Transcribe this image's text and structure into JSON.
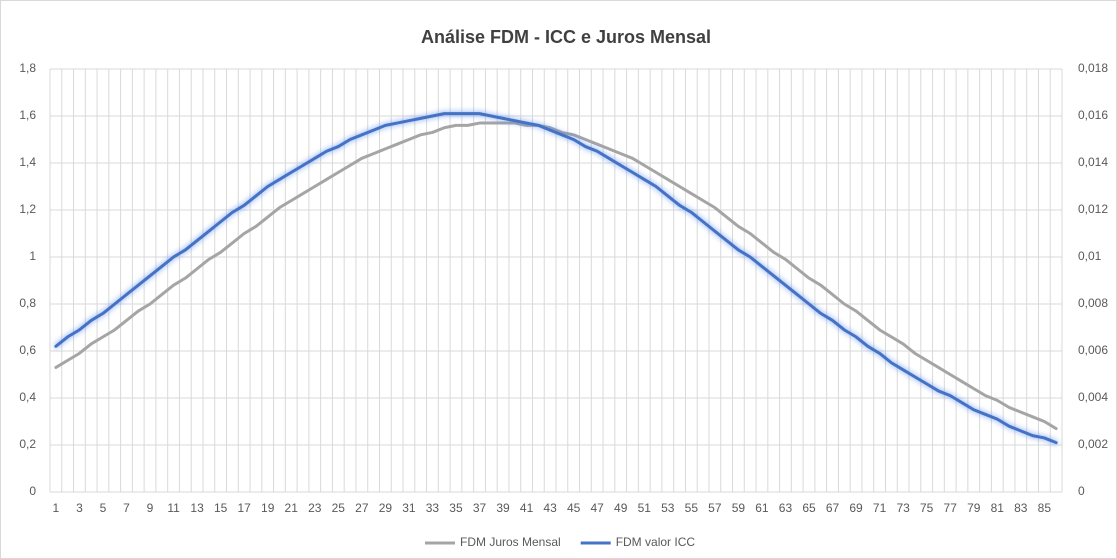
{
  "chart_data": {
    "type": "line",
    "title": "Análise FDM - ICC e Juros Mensal",
    "categories": [
      "1",
      null,
      "3",
      null,
      "5",
      null,
      "7",
      null,
      "9",
      null,
      "11",
      null,
      "13",
      null,
      "15",
      null,
      "17",
      null,
      "19",
      null,
      "21",
      null,
      "23",
      null,
      "25",
      null,
      "27",
      null,
      "29",
      null,
      "31",
      null,
      "33",
      null,
      "35",
      null,
      "37",
      null,
      "39",
      null,
      "41",
      null,
      "43",
      null,
      "45",
      null,
      "47",
      null,
      "49",
      null,
      "51",
      null,
      "53",
      null,
      "55",
      null,
      "57",
      null,
      "59",
      null,
      "61",
      null,
      "63",
      null,
      "65",
      null,
      "67",
      null,
      "69",
      null,
      "71",
      null,
      "73",
      null,
      "75",
      null,
      "77",
      null,
      "79",
      null,
      "81",
      null,
      "83",
      null,
      "85",
      null
    ],
    "series": [
      {
        "name": "FDM Juros Mensal",
        "color": "#a5a5a5",
        "values": [
          0.53,
          0.56,
          0.59,
          0.63,
          0.66,
          0.69,
          0.73,
          0.77,
          0.8,
          0.84,
          0.88,
          0.91,
          0.95,
          0.99,
          1.02,
          1.06,
          1.1,
          1.13,
          1.17,
          1.21,
          1.24,
          1.27,
          1.3,
          1.33,
          1.36,
          1.39,
          1.42,
          1.44,
          1.46,
          1.48,
          1.5,
          1.52,
          1.53,
          1.55,
          1.56,
          1.56,
          1.57,
          1.57,
          1.57,
          1.57,
          1.56,
          1.56,
          1.55,
          1.53,
          1.52,
          1.5,
          1.48,
          1.46,
          1.44,
          1.42,
          1.39,
          1.36,
          1.33,
          1.3,
          1.27,
          1.24,
          1.21,
          1.17,
          1.13,
          1.1,
          1.06,
          1.02,
          0.99,
          0.95,
          0.91,
          0.88,
          0.84,
          0.8,
          0.77,
          0.73,
          0.69,
          0.66,
          0.63,
          0.59,
          0.56,
          0.53,
          0.5,
          0.47,
          0.44,
          0.41,
          0.39,
          0.36,
          0.34,
          0.32,
          0.3,
          0.27
        ]
      },
      {
        "name": "FDM valor ICC",
        "color": "#4472c4",
        "axis": "y2",
        "values": [
          0.0062,
          0.0066,
          0.0069,
          0.0073,
          0.0076,
          0.008,
          0.0084,
          0.0088,
          0.0092,
          0.0096,
          0.01,
          0.0103,
          0.0107,
          0.0111,
          0.0115,
          0.0119,
          0.0122,
          0.0126,
          0.013,
          0.0133,
          0.0136,
          0.0139,
          0.0142,
          0.0145,
          0.0147,
          0.015,
          0.0152,
          0.0154,
          0.0156,
          0.0157,
          0.0158,
          0.0159,
          0.016,
          0.0161,
          0.0161,
          0.0161,
          0.0161,
          0.016,
          0.0159,
          0.0158,
          0.0157,
          0.0156,
          0.0154,
          0.0152,
          0.015,
          0.0147,
          0.0145,
          0.0142,
          0.0139,
          0.0136,
          0.0133,
          0.013,
          0.0126,
          0.0122,
          0.0119,
          0.0115,
          0.0111,
          0.0107,
          0.0103,
          0.01,
          0.0096,
          0.0092,
          0.0088,
          0.0084,
          0.008,
          0.0076,
          0.0073,
          0.0069,
          0.0066,
          0.0062,
          0.0059,
          0.0055,
          0.0052,
          0.0049,
          0.0046,
          0.0043,
          0.0041,
          0.0038,
          0.0035,
          0.0033,
          0.0031,
          0.0028,
          0.0026,
          0.0024,
          0.0023,
          0.0021
        ]
      }
    ],
    "ylim": [
      0,
      1.8
    ],
    "yticks": [
      0,
      {
        "value": 0.2,
        "label": "0,2"
      },
      {
        "value": 0.4,
        "label": "0,4"
      },
      {
        "value": 0.6,
        "label": "0,6"
      },
      {
        "value": 0.8,
        "label": "0,8"
      },
      1,
      {
        "value": 1.2,
        "label": "1,2"
      },
      {
        "value": 1.4,
        "label": "1,4"
      },
      {
        "value": 1.6,
        "label": "1,6"
      },
      {
        "value": 1.8,
        "label": "1,8"
      }
    ],
    "y2lim": [
      0,
      0.018
    ],
    "y2ticks": [
      0,
      {
        "value": 0.002,
        "label": "0,002"
      },
      {
        "value": 0.004,
        "label": "0,004"
      },
      {
        "value": 0.006,
        "label": "0,006"
      },
      {
        "value": 0.008,
        "label": "0,008"
      },
      {
        "value": 0.01,
        "label": "0,01"
      },
      {
        "value": 0.012,
        "label": "0,012"
      },
      {
        "value": 0.014,
        "label": "0,014"
      },
      {
        "value": 0.016,
        "label": "0,016"
      },
      {
        "value": 0.018,
        "label": "0,018"
      }
    ],
    "grid": true,
    "legend": "bottom"
  }
}
